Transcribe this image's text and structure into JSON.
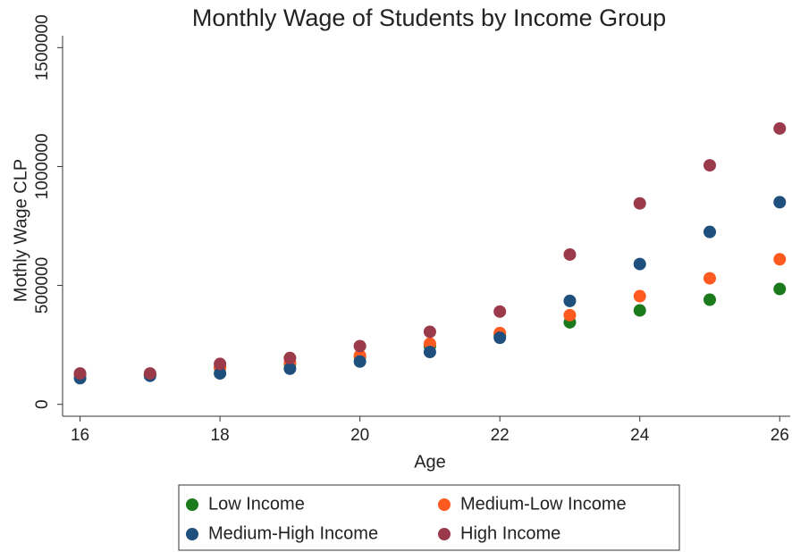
{
  "chart_data": {
    "type": "scatter",
    "title": "Monthly Wage of Students by Income Group",
    "x_label": "Age",
    "y_label": "Mothly Wage CLP",
    "x": [
      16,
      17,
      18,
      19,
      20,
      21,
      22,
      23,
      24,
      25,
      26
    ],
    "series": [
      {
        "name": "Low Income",
        "color": "#1b7a1b",
        "values": [
          125000,
          125000,
          155000,
          170000,
          200000,
          245000,
          290000,
          345000,
          395000,
          440000,
          485000
        ]
      },
      {
        "name": "Medium-Low Income",
        "color": "#ff5a1f",
        "values": [
          125000,
          125000,
          155000,
          175000,
          205000,
          255000,
          300000,
          375000,
          455000,
          530000,
          610000
        ]
      },
      {
        "name": "Medium-High Income",
        "color": "#1f4f7c",
        "values": [
          110000,
          120000,
          130000,
          150000,
          180000,
          220000,
          280000,
          435000,
          590000,
          725000,
          850000
        ]
      },
      {
        "name": "High Income",
        "color": "#9a3a4b",
        "values": [
          130000,
          130000,
          170000,
          195000,
          245000,
          305000,
          390000,
          630000,
          845000,
          1005000,
          1160000
        ]
      }
    ],
    "xlim": [
      15.75,
      26.15
    ],
    "ylim": [
      -50000,
      1550000
    ],
    "xticks": [
      16,
      18,
      20,
      22,
      24,
      26
    ],
    "yticks": [
      0,
      500000,
      1000000,
      1500000
    ]
  }
}
